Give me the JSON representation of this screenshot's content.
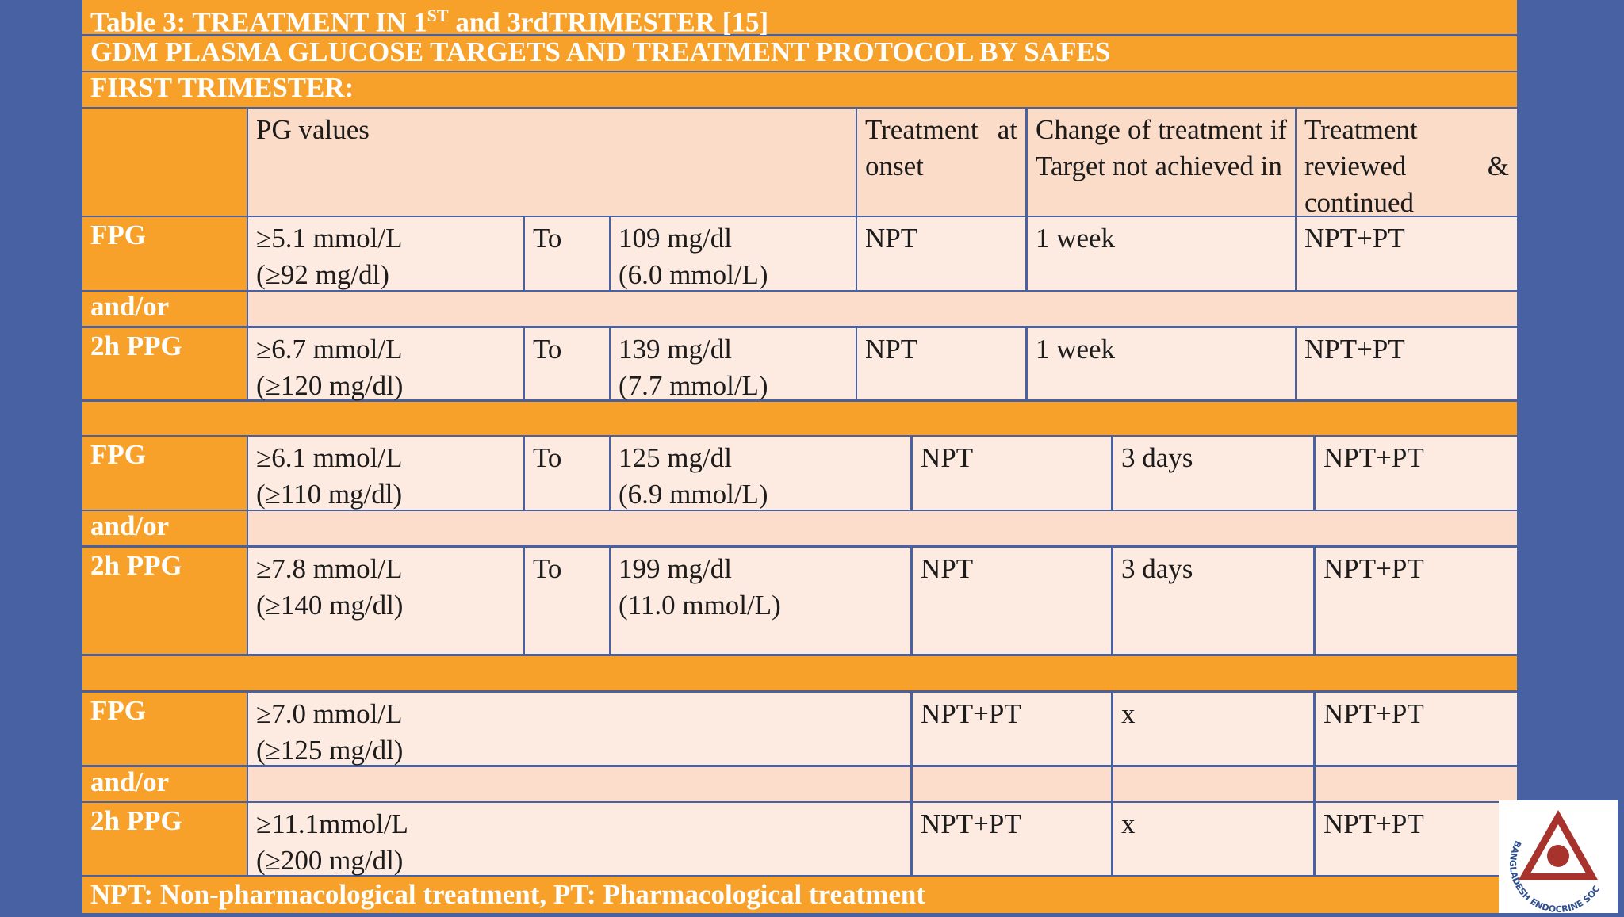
{
  "title": {
    "prefix": "Table 3: TREATMENT IN 1",
    "superscript": "ST",
    "suffix": " and 3rdTRIMESTER [15]"
  },
  "subtitle": "GDM PLASMA GLUCOSE TARGETS AND TREATMENT PROTOCOL BY SAFES",
  "section": "FIRST TRIMESTER:",
  "table": {
    "header": {
      "pg": "PG values",
      "onset": "Treatment at onset",
      "change": "Change of treatment if Target not achieved in",
      "reviewed": "Treatment reviewed & continued"
    },
    "groups": [
      {
        "rows": [
          {
            "label": "FPG",
            "low": [
              "≥5.1 mmol/L",
              "(≥92 mg/dl)"
            ],
            "to": "To",
            "high": [
              "109 mg/dl",
              "(6.0 mmol/L)"
            ],
            "onset": "NPT",
            "change": "1 week",
            "reviewed": "NPT+PT"
          },
          {
            "label": "and/or"
          },
          {
            "label": "2h PPG",
            "low": [
              "≥6.7 mmol/L",
              "(≥120 mg/dl)"
            ],
            "to": "To",
            "high": [
              "139 mg/dl",
              "(7.7 mmol/L)"
            ],
            "onset": "NPT",
            "change": "1 week",
            "reviewed": "NPT+PT"
          }
        ]
      },
      {
        "rows": [
          {
            "label": "FPG",
            "low": [
              "≥6.1 mmol/L",
              "(≥110 mg/dl)"
            ],
            "to": "To",
            "high": [
              "125 mg/dl",
              "(6.9 mmol/L)"
            ],
            "onset": "NPT",
            "change": "3 days",
            "reviewed": "NPT+PT"
          },
          {
            "label": "and/or"
          },
          {
            "label": "2h PPG",
            "low": [
              "≥7.8 mmol/L",
              "(≥140 mg/dl)"
            ],
            "to": "To",
            "high": [
              "199 mg/dl",
              "(11.0 mmol/L)"
            ],
            "onset": "NPT",
            "change": "3 days",
            "reviewed": "NPT+PT"
          }
        ]
      },
      {
        "rows": [
          {
            "label": "FPG",
            "low": [
              "≥7.0 mmol/L",
              "(≥125 mg/dl)"
            ],
            "onset": "NPT+PT",
            "change": "x",
            "reviewed": "NPT+PT"
          },
          {
            "label": "and/or"
          },
          {
            "label": "2h PPG",
            "low": [
              "≥11.1mmol/L",
              "(≥200 mg/dl)"
            ],
            "onset": "NPT+PT",
            "change": "x",
            "reviewed": "NPT+PT"
          }
        ]
      }
    ]
  },
  "footnote": "NPT: Non-pharmacological treatment, PT: Pharmacological treatment",
  "logo": "BANGLADESH ENDOCRINE SOCIETY"
}
